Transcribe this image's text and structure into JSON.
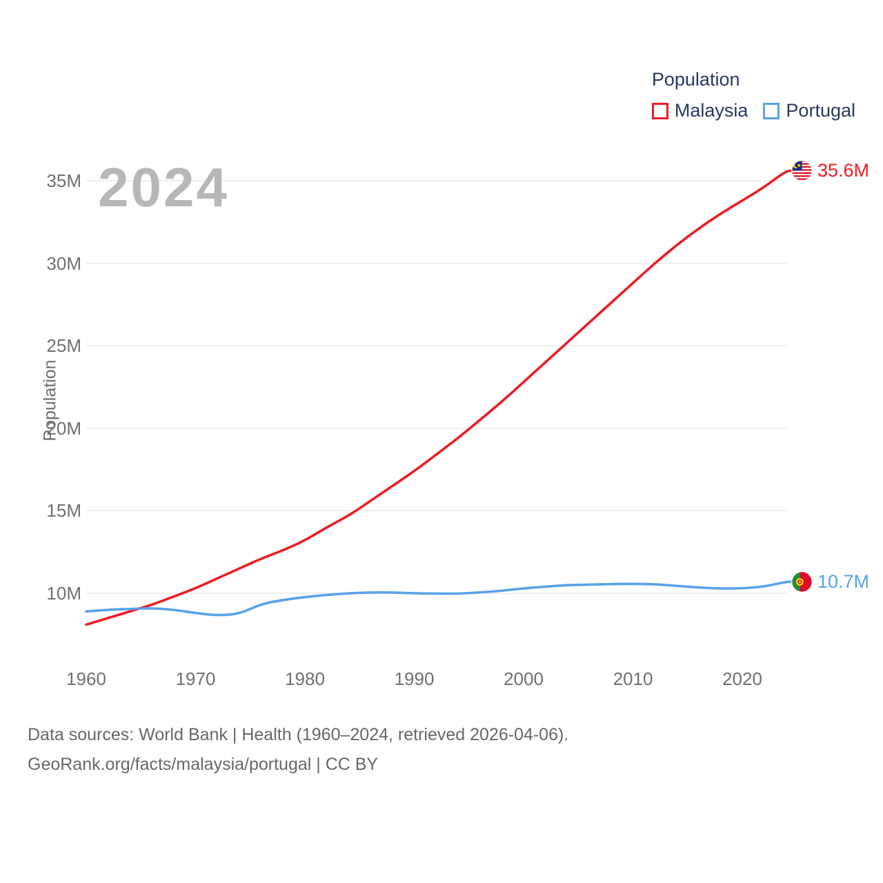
{
  "legend": {
    "title": "Population",
    "items": [
      {
        "label": "Malaysia",
        "color": "#ed1c24"
      },
      {
        "label": "Portugal",
        "color": "#58a3e8"
      }
    ]
  },
  "watermark_year": "2024",
  "y_axis": {
    "title": "Population",
    "ticks": [
      {
        "label": "35M",
        "value": 35
      },
      {
        "label": "30M",
        "value": 30
      },
      {
        "label": "25M",
        "value": 25
      },
      {
        "label": "20M",
        "value": 20
      },
      {
        "label": "15M",
        "value": 15
      },
      {
        "label": "10M",
        "value": 10
      }
    ]
  },
  "x_axis": {
    "ticks": [
      1960,
      1970,
      1980,
      1990,
      2000,
      2010,
      2020
    ]
  },
  "end_labels": [
    {
      "series": "Malaysia",
      "text": "35.6M",
      "color": "#ed1c24",
      "icon": "malaysia-flag-icon"
    },
    {
      "series": "Portugal",
      "text": "10.7M",
      "color": "#58a3e8",
      "icon": "portugal-flag-icon"
    }
  ],
  "footer": {
    "line1": "Data sources: World Bank | Health (1960–2024, retrieved 2026-04-06).",
    "line2": "GeoRank.org/facts/malaysia/portugal | CC BY"
  },
  "chart_data": {
    "type": "line",
    "title": "Population",
    "xlabel": "",
    "ylabel": "Population",
    "x": [
      1960,
      1962,
      1964,
      1966,
      1968,
      1970,
      1972,
      1974,
      1976,
      1978,
      1980,
      1982,
      1984,
      1986,
      1988,
      1990,
      1992,
      1994,
      1996,
      1998,
      2000,
      2002,
      2004,
      2006,
      2008,
      2010,
      2012,
      2014,
      2016,
      2018,
      2020,
      2022,
      2024
    ],
    "series": [
      {
        "name": "Malaysia",
        "color": "#ed1c24",
        "end_value_label": "35.6M",
        "values": [
          8.1,
          8.5,
          8.9,
          9.3,
          9.8,
          10.3,
          10.9,
          11.5,
          12.1,
          12.6,
          13.2,
          14.0,
          14.7,
          15.6,
          16.5,
          17.4,
          18.4,
          19.4,
          20.5,
          21.6,
          22.8,
          24.0,
          25.2,
          26.4,
          27.6,
          28.8,
          30.0,
          31.1,
          32.1,
          33.0,
          33.8,
          34.6,
          35.6
        ]
      },
      {
        "name": "Portugal",
        "color": "#58a3e8",
        "end_value_label": "10.7M",
        "values": [
          8.9,
          9.0,
          9.05,
          9.1,
          9.0,
          8.8,
          8.65,
          8.75,
          9.35,
          9.6,
          9.77,
          9.9,
          10.0,
          10.05,
          10.05,
          10.0,
          9.98,
          9.97,
          10.05,
          10.15,
          10.3,
          10.4,
          10.5,
          10.52,
          10.56,
          10.57,
          10.55,
          10.45,
          10.35,
          10.28,
          10.3,
          10.4,
          10.7
        ]
      }
    ],
    "xlim": [
      1960,
      2024
    ],
    "ylim": [
      7.5,
      36.5
    ],
    "grid": "horizontal",
    "legend_position": "top-right"
  }
}
